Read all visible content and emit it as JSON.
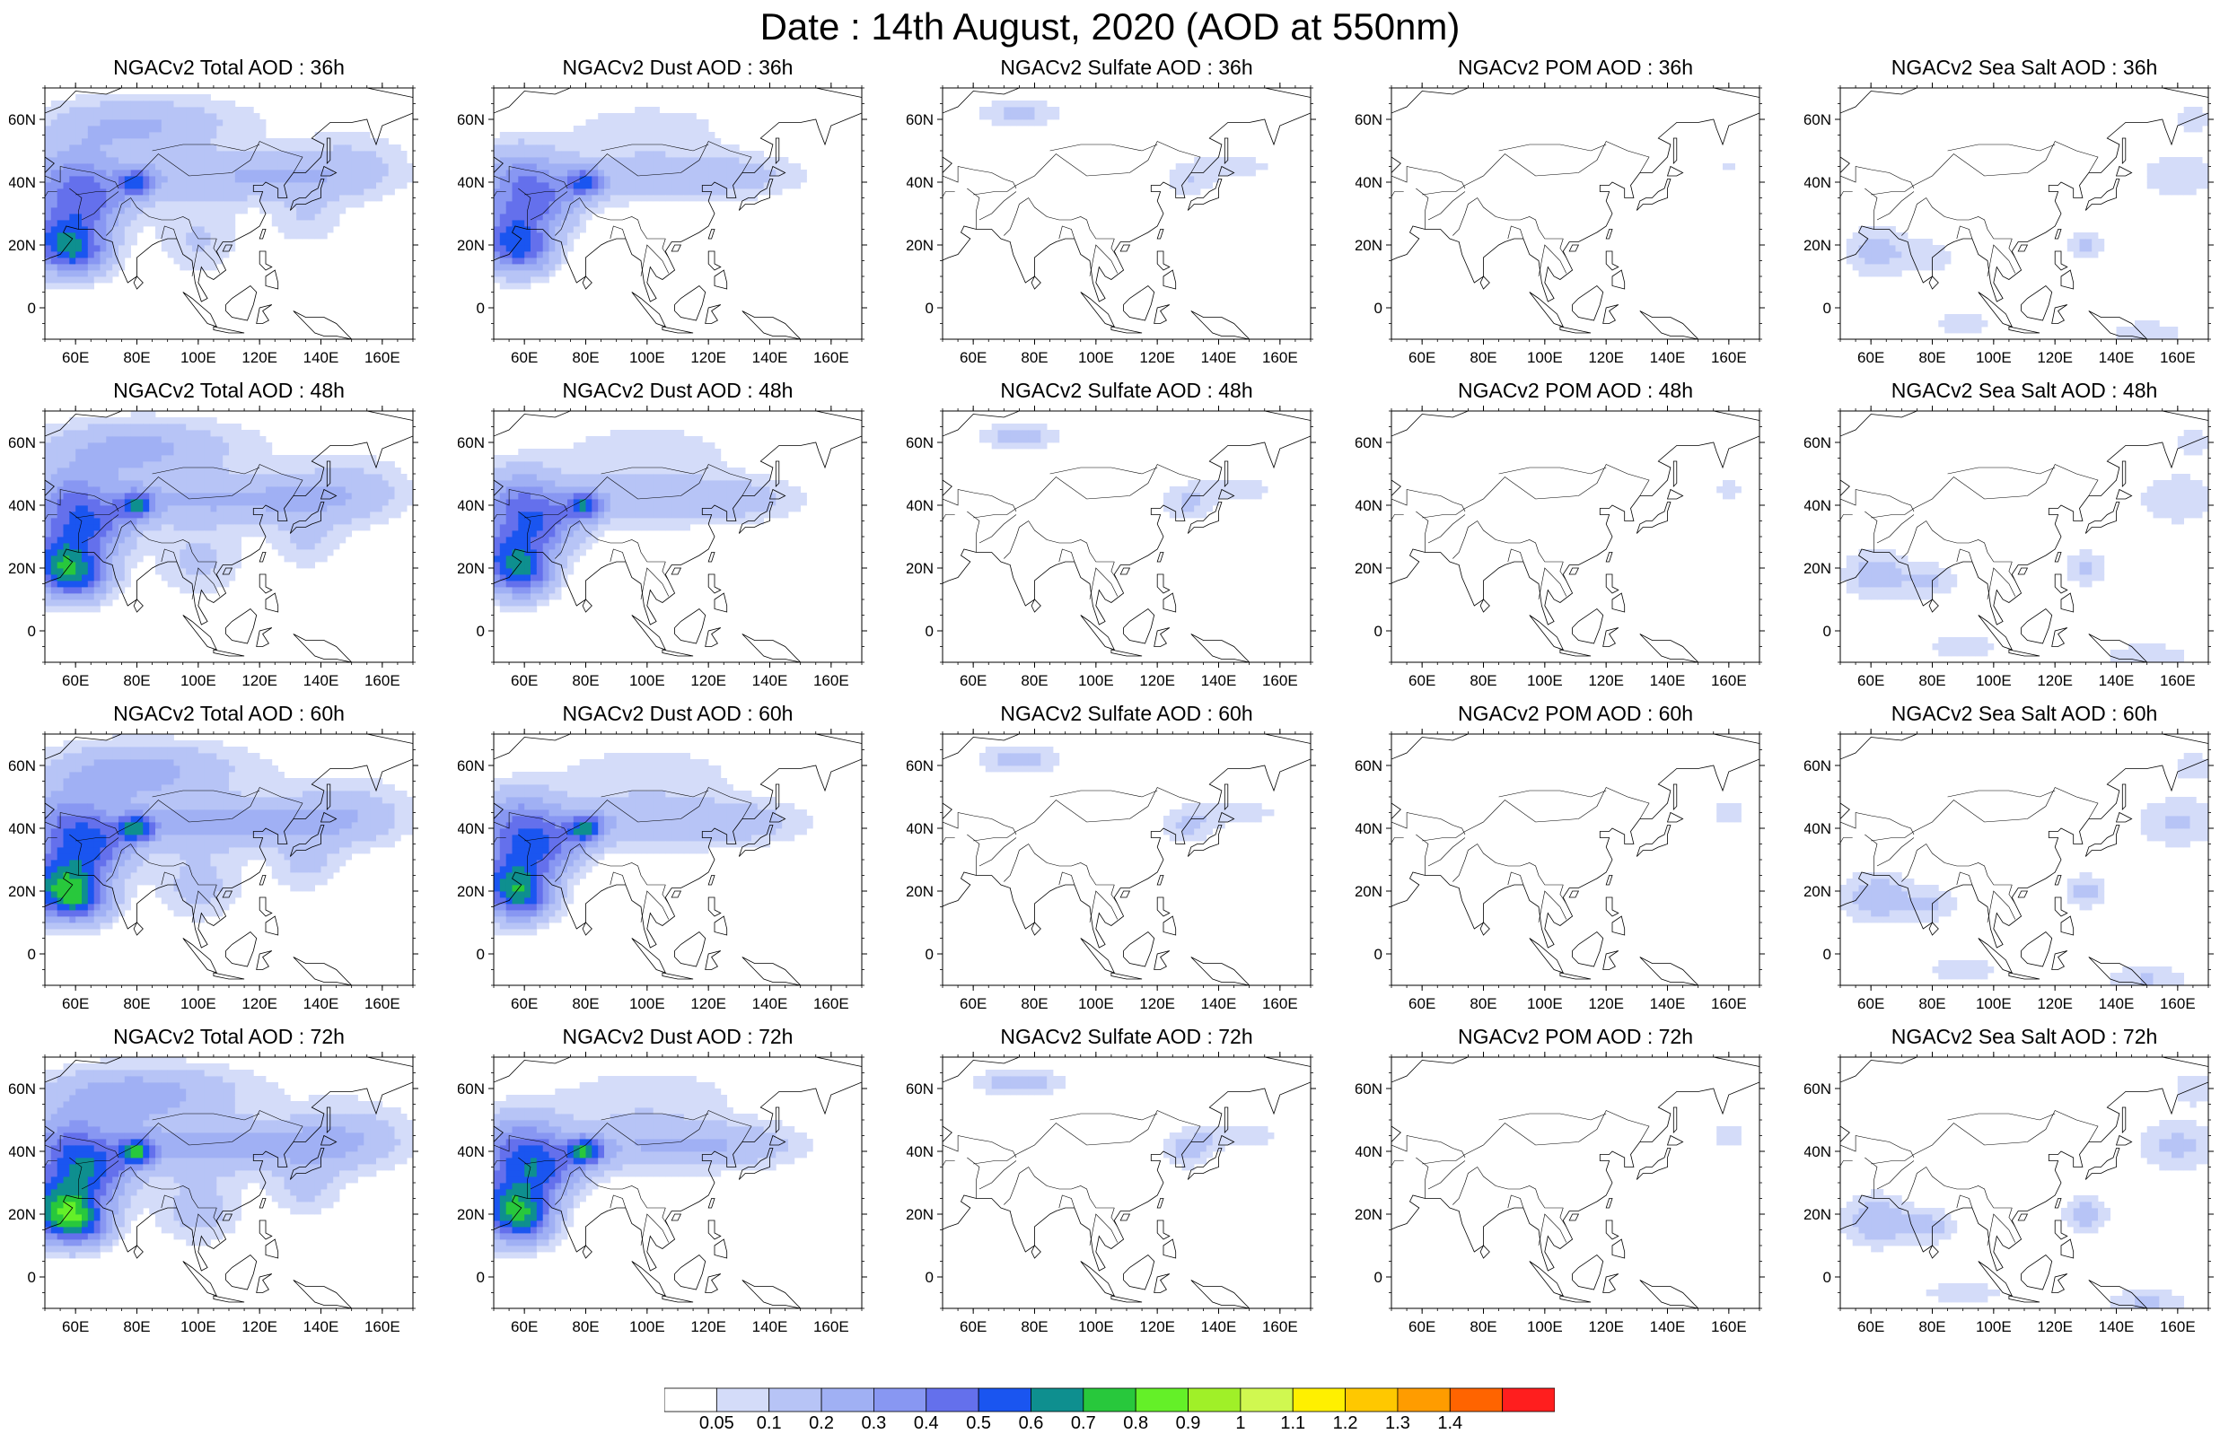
{
  "title": "Date : 14th August, 2020 (AOD at 550nm)",
  "axes": {
    "lon_ticks": [
      "60E",
      "80E",
      "100E",
      "120E",
      "140E",
      "160E"
    ],
    "lat_ticks": [
      "60N",
      "40N",
      "20N",
      "0"
    ]
  },
  "panels": [
    {
      "title": "NGACv2 Total AOD : 36h",
      "species": "total",
      "lead": "36h"
    },
    {
      "title": "NGACv2 Dust AOD : 36h",
      "species": "dust",
      "lead": "36h"
    },
    {
      "title": "NGACv2 Sulfate AOD : 36h",
      "species": "sulfate",
      "lead": "36h"
    },
    {
      "title": "NGACv2 POM AOD : 36h",
      "species": "pom",
      "lead": "36h"
    },
    {
      "title": "NGACv2 Sea Salt AOD : 36h",
      "species": "seasalt",
      "lead": "36h"
    },
    {
      "title": "NGACv2 Total AOD : 48h",
      "species": "total",
      "lead": "48h"
    },
    {
      "title": "NGACv2 Dust AOD : 48h",
      "species": "dust",
      "lead": "48h"
    },
    {
      "title": "NGACv2 Sulfate AOD : 48h",
      "species": "sulfate",
      "lead": "48h"
    },
    {
      "title": "NGACv2 POM AOD : 48h",
      "species": "pom",
      "lead": "48h"
    },
    {
      "title": "NGACv2 Sea Salt AOD : 48h",
      "species": "seasalt",
      "lead": "48h"
    },
    {
      "title": "NGACv2 Total AOD : 60h",
      "species": "total",
      "lead": "60h"
    },
    {
      "title": "NGACv2 Dust AOD : 60h",
      "species": "dust",
      "lead": "60h"
    },
    {
      "title": "NGACv2 Sulfate AOD : 60h",
      "species": "sulfate",
      "lead": "60h"
    },
    {
      "title": "NGACv2 POM AOD : 60h",
      "species": "pom",
      "lead": "60h"
    },
    {
      "title": "NGACv2 Sea Salt AOD : 60h",
      "species": "seasalt",
      "lead": "60h"
    },
    {
      "title": "NGACv2 Total AOD : 72h",
      "species": "total",
      "lead": "72h"
    },
    {
      "title": "NGACv2 Dust AOD : 72h",
      "species": "dust",
      "lead": "72h"
    },
    {
      "title": "NGACv2 Sulfate AOD : 72h",
      "species": "sulfate",
      "lead": "72h"
    },
    {
      "title": "NGACv2 POM AOD : 72h",
      "species": "pom",
      "lead": "72h"
    },
    {
      "title": "NGACv2 Sea Salt  AOD : 72h",
      "species": "seasalt",
      "lead": "72h"
    }
  ],
  "colorbar": {
    "labels": [
      "0.05",
      "0.1",
      "0.2",
      "0.3",
      "0.4",
      "0.5",
      "0.6",
      "0.7",
      "0.8",
      "0.9",
      "1",
      "1.1",
      "1.2",
      "1.3",
      "1.4"
    ],
    "colors": [
      "#ffffff",
      "#d4dcf9",
      "#b7c4f6",
      "#a0b0f4",
      "#8897f2",
      "#6470ec",
      "#1a55f0",
      "#0e8f8f",
      "#28c83c",
      "#64f028",
      "#a0f028",
      "#d0f850",
      "#fff000",
      "#ffc800",
      "#ff9c00",
      "#ff6400",
      "#ff1e1e"
    ]
  },
  "region": {
    "lon_range": [
      50,
      170
    ],
    "lat_range": [
      -10,
      70
    ]
  }
}
